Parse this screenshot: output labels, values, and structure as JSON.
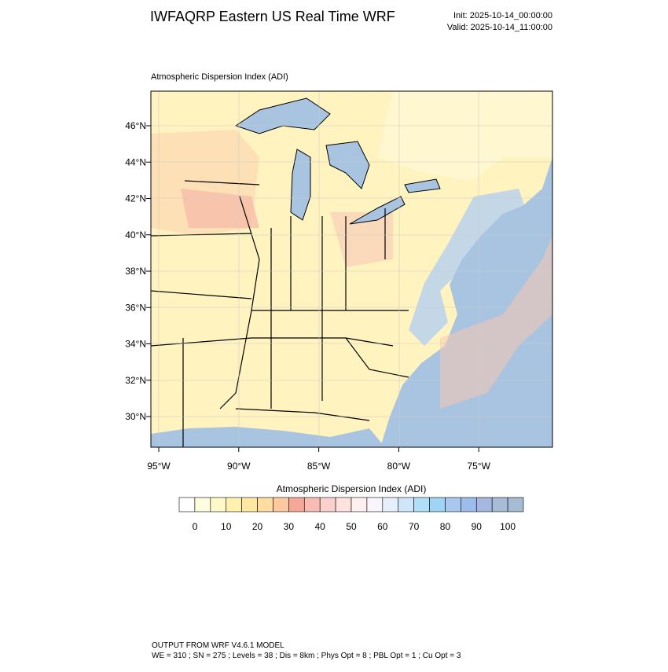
{
  "header": {
    "title": "IWFAQRP Eastern US Real Time WRF",
    "init": "Init: 2025-10-14_00:00:00",
    "valid": "Valid: 2025-10-14_11:00:00"
  },
  "map": {
    "title": "Atmospheric Dispersion Index   (ADI)",
    "lat_labels": [
      "30°N",
      "32°N",
      "34°N",
      "36°N",
      "38°N",
      "40°N",
      "42°N",
      "44°N",
      "46°N"
    ],
    "lon_labels": [
      "95°W",
      "90°W",
      "85°W",
      "80°W",
      "75°W"
    ]
  },
  "colorbar": {
    "title": "Atmospheric Dispersion Index  (ADI)",
    "colors": [
      "#ffffff",
      "#fffde0",
      "#fff8c8",
      "#fff2b0",
      "#ffe9a0",
      "#ffdca0",
      "#ffc9a0",
      "#f6a898",
      "#f8bcb4",
      "#fad0cc",
      "#fde2de",
      "#fdf0ee",
      "#f8f6fc",
      "#e6f0fc",
      "#cfe6fa",
      "#b0e0f8",
      "#a0d4f4",
      "#a8c8f0",
      "#9cbcec",
      "#a4b8e0",
      "#a8bcd8",
      "#a6bcd4"
    ],
    "ticks": [
      0,
      10,
      20,
      30,
      40,
      50,
      60,
      70,
      80,
      90,
      100
    ]
  },
  "footer": {
    "line1": "OUTPUT FROM WRF V4.6.1 MODEL",
    "line2": "WE = 310 ; SN = 275 ; Levels = 38 ; Dis = 8km ; Phys Opt = 8 ; PBL Opt = 1 ; Cu Opt = 3"
  }
}
